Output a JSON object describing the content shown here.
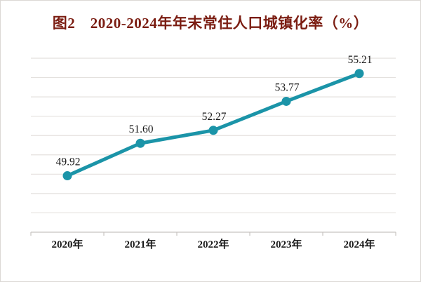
{
  "window": {
    "background": "#ffffff",
    "border_color": "#dbd8d5"
  },
  "chart_data": {
    "type": "line",
    "title": "图2　2020-2024年年末常住人口城镇化率（%）",
    "categories": [
      "2020年",
      "2021年",
      "2022年",
      "2023年",
      "2024年"
    ],
    "values": [
      49.92,
      51.6,
      52.27,
      53.77,
      55.21
    ],
    "point_labels": [
      "49.92",
      "51.60",
      "52.27",
      "53.77",
      "55.21"
    ],
    "xlabel": "",
    "ylabel": "",
    "ylim": [
      47,
      56
    ],
    "grid_step": 1,
    "grid": true,
    "legend": "none",
    "colors": {
      "line": "#1b94a8",
      "marker": "#1b94a8",
      "title": "#7b1d12",
      "data_label": "#1a1a1a",
      "axis_label": "#1a1a1a",
      "grid": "#e4e1de",
      "axis": "#c8c4c1"
    }
  }
}
